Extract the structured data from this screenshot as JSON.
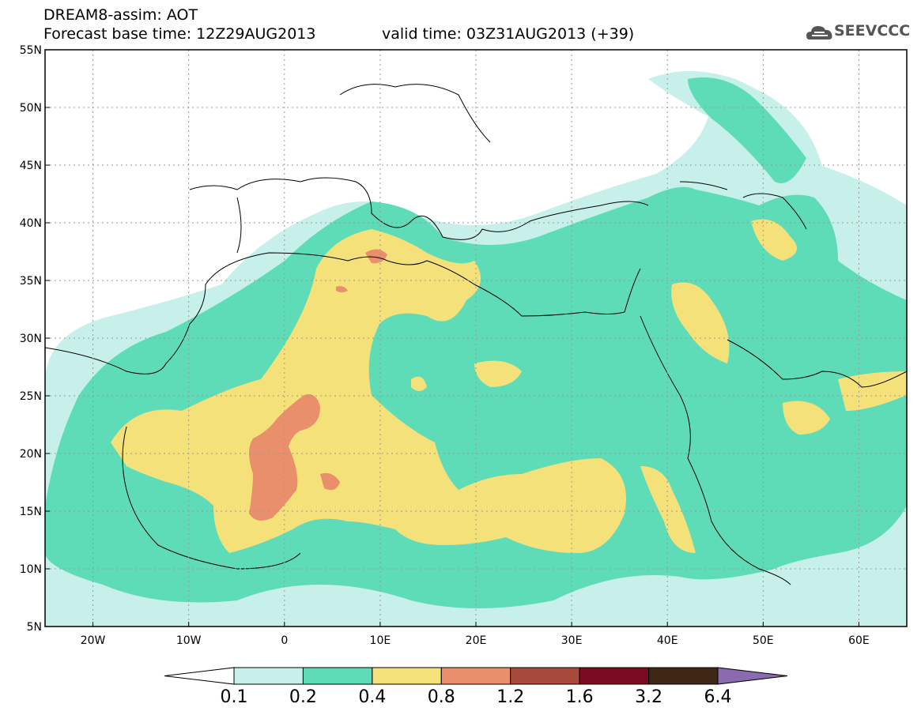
{
  "title": {
    "line1": "DREAM8-assim: AOT",
    "line2": "Forecast base time: 12Z29AUG2013",
    "valid": "valid time: 03Z31AUG2013 (+39)"
  },
  "logo": {
    "text": "SEEVCCC",
    "icon": "cloud-logo-icon"
  },
  "map": {
    "lon_range": [
      -25,
      65
    ],
    "lat_range": [
      5,
      55
    ],
    "x_ticks": [
      "20W",
      "10W",
      "0",
      "10E",
      "20E",
      "30E",
      "40E",
      "50E",
      "60E"
    ],
    "y_ticks": [
      "55N",
      "50N",
      "45N",
      "40N",
      "35N",
      "30N",
      "25N",
      "20N",
      "15N",
      "10N",
      "5N"
    ],
    "grid": "dotted"
  },
  "colorbar": {
    "levels": [
      "0.1",
      "0.2",
      "0.4",
      "0.8",
      "1.2",
      "1.6",
      "3.2",
      "6.4"
    ],
    "colors": [
      "#c8f0ea",
      "#5ddcb7",
      "#f5e17a",
      "#e98f6b",
      "#a8493e",
      "#7a0b22",
      "#3f2716",
      "#8a6bb0"
    ],
    "under_color": "#ffffff"
  }
}
